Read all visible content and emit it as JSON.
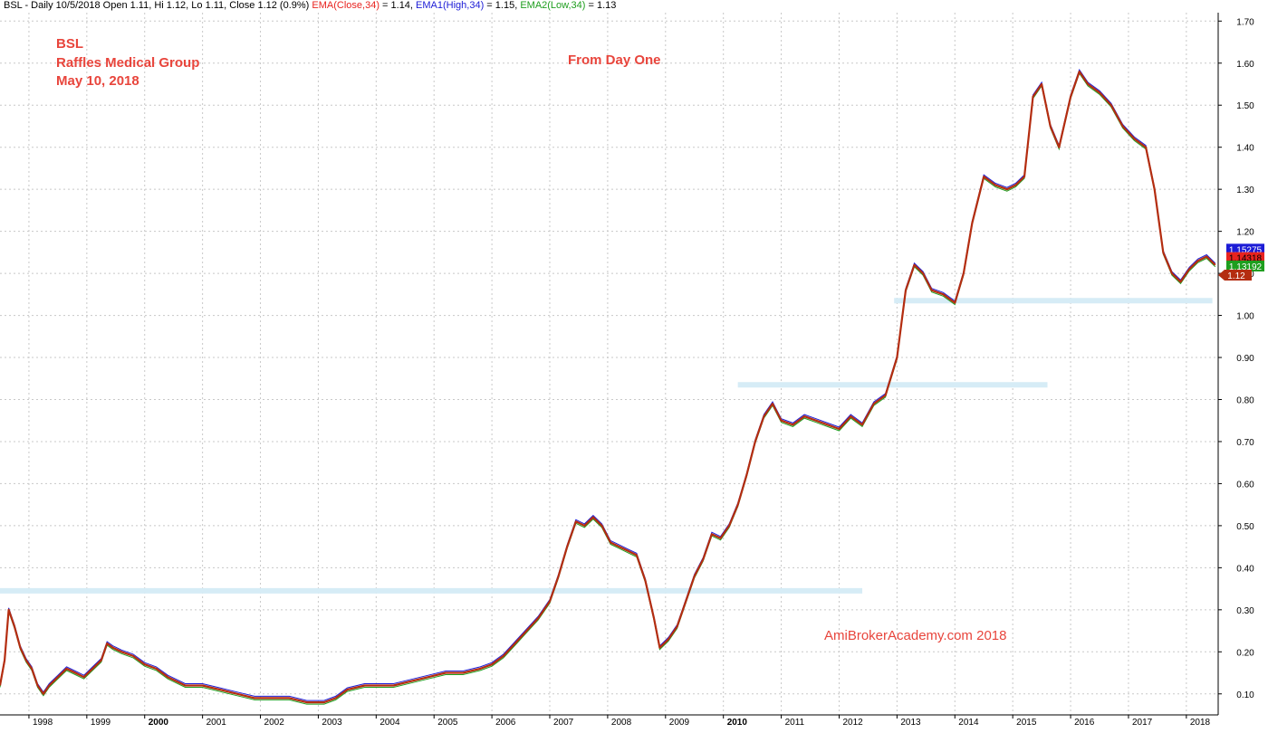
{
  "header": {
    "prefix": "BSL - Daily 10/5/2018 Open 1.11, Hi 1.12, Lo 1.11, Close 1.12 (0.9%)",
    "ema_label": "EMA(Close,34)",
    "ema_value": " = 1.14, ",
    "ema1_label": "EMA1(High,34)",
    "ema1_value": " = 1.15, ",
    "ema2_label": "EMA2(Low,34)",
    "ema2_value": " = 1.13"
  },
  "annotations": {
    "line1": "BSL",
    "line2": "Raffles Medical Group",
    "line3": "May 10, 2018",
    "center": "From Day One",
    "watermark": "AmiBrokerAcademy.com  2018"
  },
  "colors": {
    "price": "#b42d10",
    "ema_close": "#e8231f",
    "ema_high": "#1c1cd6",
    "ema_low": "#1e9e1e",
    "support_lines": "#d6ecf6",
    "grid": "#c8c8c8",
    "annotation": "#e8453c"
  },
  "chart_data": {
    "type": "line",
    "title": "",
    "xlabel": "",
    "ylabel": "",
    "x_ticks": [
      "1998",
      "1999",
      "2000",
      "2001",
      "2002",
      "2003",
      "2004",
      "2005",
      "2006",
      "2007",
      "2008",
      "2009",
      "2010",
      "2011",
      "2012",
      "2013",
      "2014",
      "2015",
      "2016",
      "2017",
      "2018"
    ],
    "y_ticks": [
      "0.10",
      "0.20",
      "0.30",
      "0.40",
      "0.50",
      "0.60",
      "0.70",
      "0.80",
      "0.90",
      "1.00",
      "1.10",
      "1.20",
      "1.30",
      "1.40",
      "1.50",
      "1.60",
      "1.70"
    ],
    "ylim": [
      0.05,
      1.72
    ],
    "xlim": [
      1997.5,
      2018.55
    ],
    "grid": true,
    "series": [
      {
        "name": "",
        "x": [
          1997.5,
          1997.58,
          1997.65,
          1997.75,
          1997.85,
          1997.95,
          1998.05,
          1998.15,
          1998.25,
          1998.35,
          1998.5,
          1998.65,
          1998.8,
          1998.95,
          1999.1,
          1999.25,
          1999.35,
          1999.45,
          1999.6,
          1999.8,
          2000.0,
          2000.2,
          2000.4,
          2000.7,
          2001.0,
          2001.3,
          2001.6,
          2001.9,
          2002.2,
          2002.5,
          2002.8,
          2003.0,
          2003.1,
          2003.3,
          2003.5,
          2003.8,
          2004.0,
          2004.3,
          2004.6,
          2004.9,
          2005.2,
          2005.5,
          2005.8,
          2006.0,
          2006.2,
          2006.4,
          2006.6,
          2006.8,
          2007.0,
          2007.15,
          2007.3,
          2007.45,
          2007.6,
          2007.75,
          2007.9,
          2008.05,
          2008.2,
          2008.35,
          2008.5,
          2008.65,
          2008.8,
          2008.9,
          2009.05,
          2009.2,
          2009.35,
          2009.5,
          2009.65,
          2009.8,
          2009.95,
          2010.1,
          2010.25,
          2010.4,
          2010.55,
          2010.7,
          2010.85,
          2011.0,
          2011.2,
          2011.4,
          2011.6,
          2011.8,
          2012.0,
          2012.2,
          2012.4,
          2012.6,
          2012.8,
          2013.0,
          2013.15,
          2013.3,
          2013.45,
          2013.6,
          2013.8,
          2014.0,
          2014.15,
          2014.3,
          2014.5,
          2014.7,
          2014.9,
          2015.05,
          2015.2,
          2015.35,
          2015.5,
          2015.65,
          2015.8,
          2016.0,
          2016.15,
          2016.3,
          2016.5,
          2016.7,
          2016.9,
          2017.1,
          2017.3,
          2017.45,
          2017.6,
          2017.75,
          2017.9,
          2018.05,
          2018.2,
          2018.35,
          2018.5
        ],
        "y": [
          0.12,
          0.18,
          0.3,
          0.26,
          0.21,
          0.18,
          0.16,
          0.12,
          0.1,
          0.12,
          0.14,
          0.16,
          0.15,
          0.14,
          0.16,
          0.18,
          0.22,
          0.21,
          0.2,
          0.19,
          0.17,
          0.16,
          0.14,
          0.12,
          0.12,
          0.11,
          0.1,
          0.09,
          0.09,
          0.09,
          0.08,
          0.08,
          0.08,
          0.09,
          0.11,
          0.12,
          0.12,
          0.12,
          0.13,
          0.14,
          0.15,
          0.15,
          0.16,
          0.17,
          0.19,
          0.22,
          0.25,
          0.28,
          0.32,
          0.38,
          0.45,
          0.51,
          0.5,
          0.52,
          0.5,
          0.46,
          0.45,
          0.44,
          0.43,
          0.37,
          0.28,
          0.21,
          0.23,
          0.26,
          0.32,
          0.38,
          0.42,
          0.48,
          0.47,
          0.5,
          0.55,
          0.62,
          0.7,
          0.76,
          0.79,
          0.75,
          0.74,
          0.76,
          0.75,
          0.74,
          0.73,
          0.76,
          0.74,
          0.79,
          0.81,
          0.9,
          1.06,
          1.12,
          1.1,
          1.06,
          1.05,
          1.03,
          1.1,
          1.22,
          1.33,
          1.31,
          1.3,
          1.31,
          1.33,
          1.52,
          1.55,
          1.45,
          1.4,
          1.52,
          1.58,
          1.55,
          1.53,
          1.5,
          1.45,
          1.42,
          1.4,
          1.3,
          1.15,
          1.1,
          1.08,
          1.11,
          1.13,
          1.14,
          1.12
        ]
      }
    ],
    "ema_series": [
      {
        "name": "EMA(Close,34)",
        "last_value": 1.14318
      },
      {
        "name": "EMA1(High,34)",
        "last_value": 1.15275
      },
      {
        "name": "EMA2(Low,34)",
        "last_value": 1.13192
      }
    ],
    "last_close": 1.12,
    "last_labels": {
      "ema_high": "1.15275",
      "ema_close": "1.14318",
      "ema_low": "1.13192",
      "close": "1.12"
    },
    "support_lines": [
      {
        "value": 0.345,
        "x_start": 1997.5,
        "x_end": 2012.4
      },
      {
        "value": 0.835,
        "x_start": 2010.25,
        "x_end": 2015.6
      },
      {
        "value": 1.035,
        "x_start": 2012.95,
        "x_end": 2018.45
      }
    ]
  }
}
